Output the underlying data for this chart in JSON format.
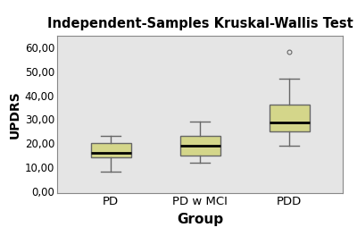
{
  "title": "Independent-Samples Kruskal-Wallis Test",
  "xlabel": "Group",
  "ylabel": "UPDRS",
  "categories": [
    "PD",
    "PD w MCI",
    "PDD"
  ],
  "ylim": [
    -1,
    65
  ],
  "yticks": [
    0,
    10,
    20,
    30,
    40,
    50,
    60
  ],
  "ytick_labels": [
    "0,00",
    "10,00",
    "20,00",
    "30,00",
    "40,00",
    "50,00",
    "60,00"
  ],
  "box_data": [
    {
      "whislo": 8.0,
      "q1": 14.0,
      "med": 16.0,
      "q3": 20.0,
      "whishi": 23.0,
      "fliers": []
    },
    {
      "whislo": 12.0,
      "q1": 15.0,
      "med": 19.0,
      "q3": 23.0,
      "whishi": 29.0,
      "fliers": []
    },
    {
      "whislo": 19.0,
      "q1": 25.0,
      "med": 28.5,
      "q3": 36.0,
      "whishi": 47.0,
      "fliers": [
        58.0
      ]
    }
  ],
  "box_facecolor": "#d4d68a",
  "box_edgecolor": "#666666",
  "median_color": "#000000",
  "whisker_color": "#666666",
  "flier_color": "#666666",
  "plot_bg_color": "#e5e5e5",
  "fig_bg_color": "#ffffff",
  "title_fontsize": 10.5,
  "title_fontweight": "bold",
  "axis_label_fontsize": 10,
  "tick_fontsize": 8.5,
  "xlabel_fontsize": 11,
  "xlabel_fontweight": "bold",
  "ylabel_fontsize": 10,
  "ylabel_fontweight": "bold"
}
